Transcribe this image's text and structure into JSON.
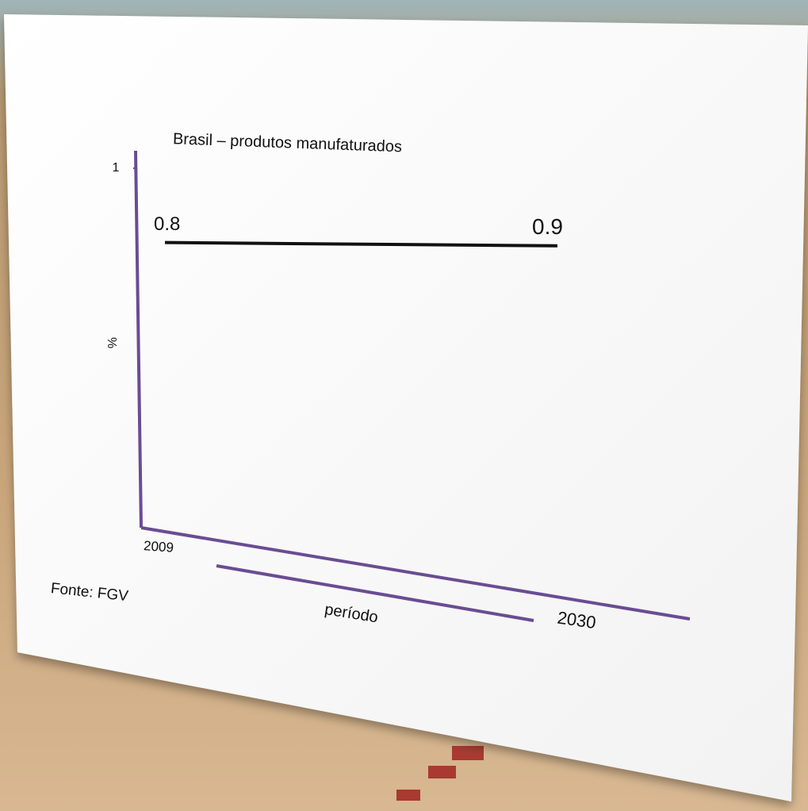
{
  "chart_data": {
    "type": "line",
    "title": "Brasil – produtos manufaturados",
    "y_label": "%",
    "x_label": "período",
    "source": "Fonte: FGV",
    "categories": [
      "2009",
      "2030"
    ],
    "series": [
      {
        "name": null,
        "color": "#111111",
        "values": [
          0.8,
          0.9
        ]
      }
    ],
    "ylim": [
      0,
      1
    ],
    "yticks": [
      1
    ],
    "axis_color": "#6a4c93"
  }
}
